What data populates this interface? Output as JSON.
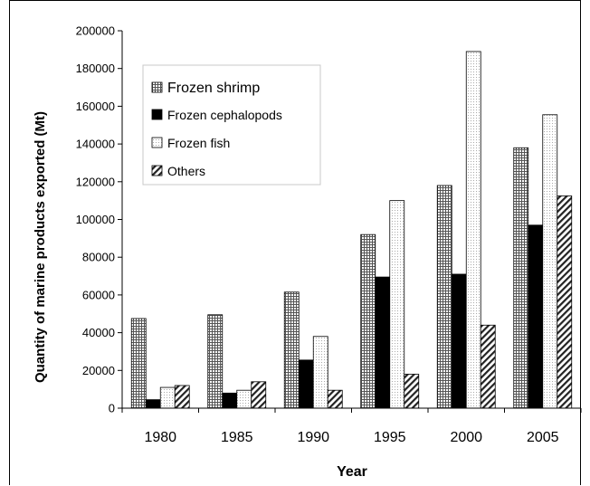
{
  "chart_data": {
    "type": "bar",
    "title": "",
    "xlabel": "Year",
    "ylabel": "Quantity of marine products exported (Mt)",
    "categories": [
      "1980",
      "1985",
      "1990",
      "1995",
      "2000",
      "2005"
    ],
    "ylim": [
      0,
      200000
    ],
    "yticks": [
      "0",
      "20000",
      "40000",
      "60000",
      "80000",
      "100000",
      "120000",
      "140000",
      "160000",
      "180000",
      "200000"
    ],
    "grid": false,
    "legend_position": "top-left",
    "series": [
      {
        "name": "Frozen shrimp",
        "pattern": "grid",
        "values": [
          47500,
          49500,
          61500,
          92000,
          118000,
          138000
        ]
      },
      {
        "name": "Frozen cephalopods",
        "pattern": "solid-black",
        "values": [
          4500,
          8000,
          25500,
          69500,
          71000,
          97000
        ]
      },
      {
        "name": "Frozen fish",
        "pattern": "dots",
        "values": [
          11000,
          9500,
          38000,
          110000,
          189000,
          155500
        ]
      },
      {
        "name": "Others",
        "pattern": "diagonal",
        "values": [
          12000,
          14000,
          9500,
          18000,
          44000,
          112500
        ]
      }
    ]
  }
}
